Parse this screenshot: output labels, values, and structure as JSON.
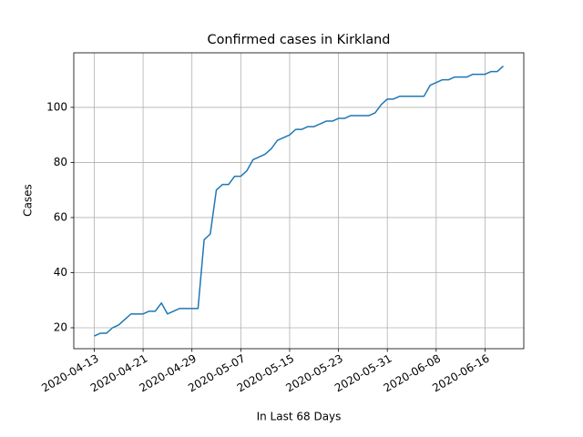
{
  "chart_data": {
    "type": "line",
    "title": "Confirmed cases in Kirkland",
    "x_label": "In Last 68 Days",
    "y_label": "Cases",
    "x": [
      "2020-04-13",
      "2020-04-14",
      "2020-04-15",
      "2020-04-16",
      "2020-04-17",
      "2020-04-18",
      "2020-04-19",
      "2020-04-20",
      "2020-04-21",
      "2020-04-22",
      "2020-04-23",
      "2020-04-24",
      "2020-04-25",
      "2020-04-26",
      "2020-04-27",
      "2020-04-28",
      "2020-04-29",
      "2020-04-30",
      "2020-05-01",
      "2020-05-02",
      "2020-05-03",
      "2020-05-04",
      "2020-05-05",
      "2020-05-06",
      "2020-05-07",
      "2020-05-08",
      "2020-05-09",
      "2020-05-10",
      "2020-05-11",
      "2020-05-12",
      "2020-05-13",
      "2020-05-14",
      "2020-05-15",
      "2020-05-16",
      "2020-05-17",
      "2020-05-18",
      "2020-05-19",
      "2020-05-20",
      "2020-05-21",
      "2020-05-22",
      "2020-05-23",
      "2020-05-24",
      "2020-05-25",
      "2020-05-26",
      "2020-05-27",
      "2020-05-28",
      "2020-05-29",
      "2020-05-30",
      "2020-05-31",
      "2020-06-01",
      "2020-06-02",
      "2020-06-03",
      "2020-06-04",
      "2020-06-05",
      "2020-06-06",
      "2020-06-07",
      "2020-06-08",
      "2020-06-09",
      "2020-06-10",
      "2020-06-11",
      "2020-06-12",
      "2020-06-13",
      "2020-06-14",
      "2020-06-15",
      "2020-06-16",
      "2020-06-17",
      "2020-06-18",
      "2020-06-19"
    ],
    "values": [
      17,
      18,
      18,
      20,
      21,
      23,
      25,
      25,
      25,
      26,
      26,
      29,
      25,
      26,
      27,
      27,
      27,
      27,
      52,
      54,
      70,
      72,
      72,
      75,
      75,
      77,
      81,
      82,
      83,
      85,
      88,
      89,
      90,
      92,
      92,
      93,
      93,
      94,
      95,
      95,
      96,
      96,
      97,
      97,
      97,
      97,
      98,
      101,
      103,
      103,
      104,
      104,
      104,
      104,
      104,
      108,
      109,
      110,
      110,
      111,
      111,
      111,
      112,
      112,
      112,
      113,
      113,
      115
    ],
    "color": "#1f77b4",
    "xticks": [
      "2020-04-13",
      "2020-04-21",
      "2020-04-29",
      "2020-05-07",
      "2020-05-15",
      "2020-05-23",
      "2020-05-31",
      "2020-06-08",
      "2020-06-16"
    ],
    "ylim": [
      12.4,
      119.8
    ],
    "yticks": [
      20,
      40,
      60,
      80,
      100
    ],
    "grid": true
  }
}
